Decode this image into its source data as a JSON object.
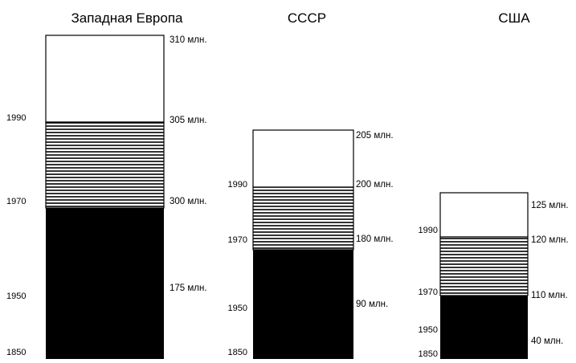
{
  "chart_data": {
    "type": "bar",
    "hatch_color": "#000000",
    "groups": [
      {
        "title": "Западная Европа",
        "year_labels": [
          "1990",
          "1970",
          "1950",
          "1850"
        ],
        "value_labels": [
          "310 млн.",
          "305 млн.",
          "300 млн.",
          "175 млн."
        ]
      },
      {
        "title": "СССР",
        "year_labels": [
          "1990",
          "1970",
          "1950",
          "1850"
        ],
        "value_labels": [
          "205 млн.",
          "200 млн.",
          "180 млн.",
          "90 млн."
        ]
      },
      {
        "title": "США",
        "year_labels": [
          "1990",
          "1970",
          "1950",
          "1850"
        ],
        "value_labels": [
          "125 млн.",
          "120 млн.",
          "110 млн.",
          "40 млн."
        ]
      }
    ]
  }
}
